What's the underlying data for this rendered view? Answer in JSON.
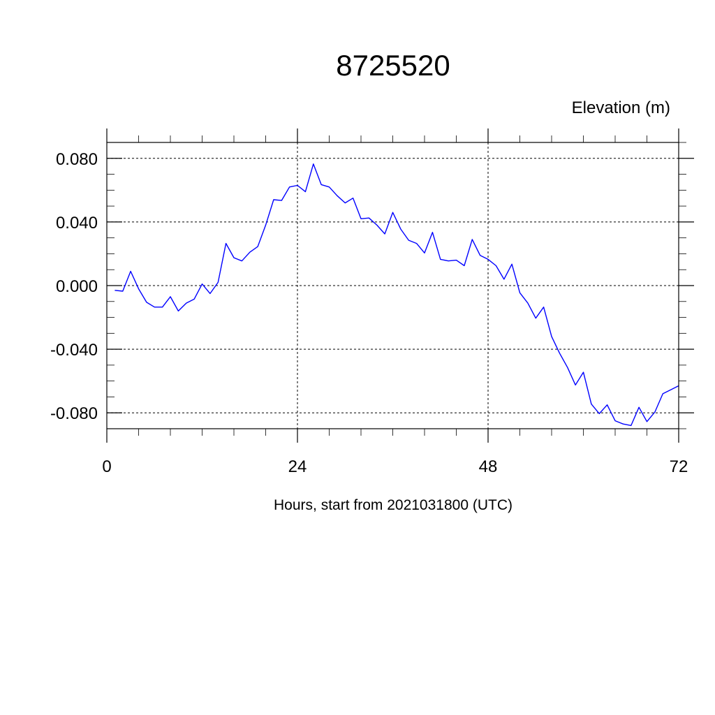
{
  "chart_data": {
    "type": "line",
    "title": "8725520",
    "ylabel": "Elevation (m)",
    "xlabel": "Hours, start from 2021031800 (UTC)",
    "xlim": [
      0,
      72
    ],
    "ylim": [
      -0.09,
      0.09
    ],
    "x_ticks": [
      0,
      24,
      48,
      72
    ],
    "x_tick_labels": [
      "0",
      "24",
      "48",
      "72"
    ],
    "y_ticks": [
      0.08,
      0.04,
      0.0,
      -0.04,
      -0.08
    ],
    "y_tick_labels": [
      "0.080",
      "0.040",
      "0.000",
      "-0.040",
      "-0.080"
    ],
    "grid": true,
    "series": [
      {
        "color": "#0000ff",
        "x": [
          1,
          2,
          3,
          4,
          5,
          6,
          7,
          8,
          9,
          10,
          11,
          12,
          13,
          14,
          15,
          16,
          17,
          18,
          19,
          20,
          21,
          22,
          23,
          24,
          25,
          26,
          27,
          28,
          29,
          30,
          31,
          32,
          33,
          34,
          35,
          36,
          37,
          38,
          39,
          40,
          41,
          42,
          43,
          44,
          45,
          46,
          47,
          48,
          49,
          50,
          51,
          52,
          53,
          54,
          55,
          56,
          57,
          58,
          59,
          60,
          61,
          62,
          63,
          64,
          65,
          66,
          67,
          68,
          69,
          70,
          71,
          72
        ],
        "values": [
          -0.003,
          -0.0035,
          0.009,
          -0.002,
          -0.0105,
          -0.0135,
          -0.0135,
          -0.007,
          -0.016,
          -0.011,
          -0.0085,
          0.001,
          -0.005,
          0.002,
          0.0265,
          0.0175,
          0.0155,
          0.021,
          0.0245,
          0.038,
          0.054,
          0.0535,
          0.062,
          0.063,
          0.059,
          0.0765,
          0.0635,
          0.062,
          0.0565,
          0.052,
          0.055,
          0.042,
          0.0425,
          0.038,
          0.0325,
          0.046,
          0.0355,
          0.0285,
          0.0265,
          0.0205,
          0.0335,
          0.0165,
          0.0155,
          0.016,
          0.0125,
          0.029,
          0.019,
          0.0165,
          0.0125,
          0.004,
          0.0135,
          -0.0045,
          -0.011,
          -0.0205,
          -0.0135,
          -0.032,
          -0.0425,
          -0.0515,
          -0.0625,
          -0.0545,
          -0.0745,
          -0.0805,
          -0.075,
          -0.085,
          -0.087,
          -0.088,
          -0.0765,
          -0.0855,
          -0.0795,
          -0.068,
          -0.0655,
          -0.063
        ]
      }
    ]
  }
}
